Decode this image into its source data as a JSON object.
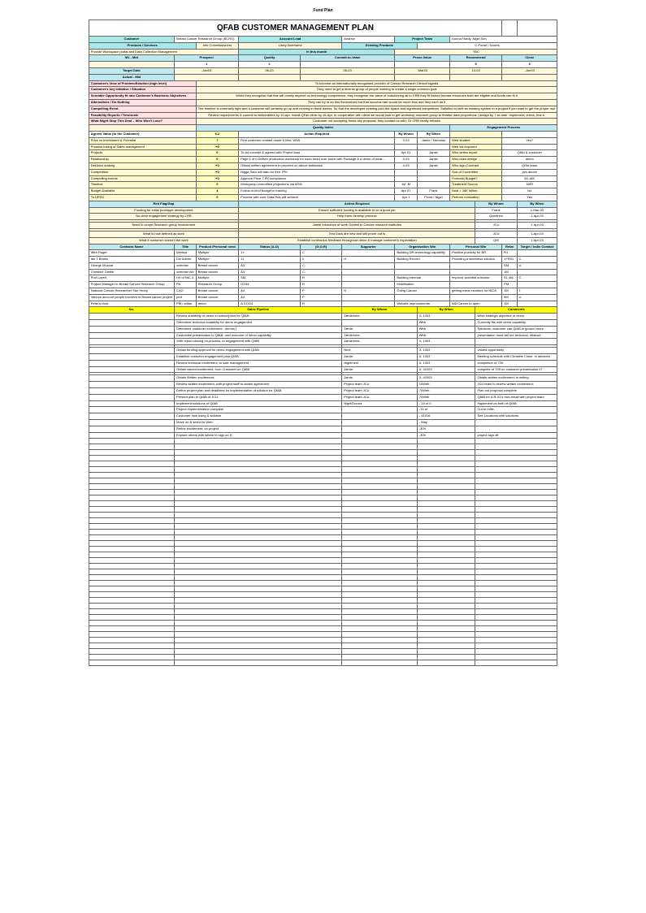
{
  "pageHeader": "Fund Plan",
  "title": "QFAB CUSTOMER MANAGEMENT PLAN",
  "custInfo": {
    "customerLabel": "Customer",
    "customerValue": "Breast Cancer Research Group (BCRG)",
    "accountLeadLabel": "Account Lead",
    "accountLeadValue": "Andrew",
    "projectTeamLabel": "Project Team",
    "projectTeamValue": "Donna Hardy, Nigel Sim",
    "productLabel": "Products / Services",
    "productValue": "Likely timeframe",
    "productValue2": "Info Commissioners",
    "existingLabel": "Existing Products",
    "existingValue": "C Portal / Scores",
    "service": "Provide Workspace portal and Data Collection Management"
  },
  "pipeline": {
    "headers": [
      "Prospect",
      "Qualify",
      "Commit-to-Value",
      "Prove-Value",
      "Recommend",
      "Close"
    ],
    "stageRow": [
      "1",
      "2",
      "",
      "",
      "5",
      "6"
    ],
    "targetLabel": "Target Date",
    "targetVals": [
      "-Jan03",
      "06-03",
      "06-03",
      "-Mar03",
      "10-03",
      "-Jun03"
    ],
    "actualLabel": "Actual - Mid",
    "inThis": "In this month"
  },
  "strategy": [
    {
      "label": "Customer's View of Problem/Solution (high level)",
      "value": "To become an internationally recognised provider of Cancer Research Clinical signals"
    },
    {
      "label": "Customer's key Initiative / Situation",
      "value": "They need to get a diverse group of people working to create a single common goal"
    },
    {
      "label": "Scorable Opportunity fit into Customer's Business Objectives",
      "value": "While they recognise that this will mostly depend on technology competence, they recognise the value of outsourcing all to CRB they fit limited human resources both are eligible and funds can fit it"
    },
    {
      "label": "Alternatives / Do Nothing",
      "value": "They can try to do this themselves but that success rate would be much less and they can't do it"
    },
    {
      "label": "Compelling Event",
      "value": "The timeline is extremely tight and a customer will certainly go up and running in three weeks. So that the developed existing cold-the-space and significant competitors. Satisfied to shift an existing system in a project if you want to get the proper use"
    },
    {
      "label": "Feasibility Reports / Timescale",
      "value": "Review requirements & commit to deliverables by 10-Apr. Install QFab clinic by 16-Apr. In cooperation with client we would look to get workshop research group to finalise data proportions / design by 7-to-date. Implement; check, test it."
    },
    {
      "label": "What Might Stop This Deal – Who Won't Lose?",
      "value": "Customer not accepting funds any proposal; they contact us with; Or CRB totally refuses"
    }
  ],
  "qualityIndex": {
    "header": "Quality Index",
    "engagementHeader": "Engagement Process",
    "rows": [
      {
        "item": "Agreed Value (to the Customer)",
        "score": "6.2",
        "action": "Action Required",
        "by": "By Whom",
        "when": "By When",
        "eng1": "",
        "eng2": ""
      },
      {
        "item": "Price vs Investment & Potential",
        "score": "7",
        "action": "First customer contact made 6-Mar; WVA",
        "by": "3-03",
        "when": "Jamie / Nicholas",
        "eng1": "Web student",
        "eng2": "Yes?"
      },
      {
        "item": "Process Inking of Sales management",
        "score": "+0",
        "action": "",
        "by": "",
        "when": "",
        "eng1": "Web via exposed",
        "eng2": ""
      },
      {
        "item": "Projects",
        "score": "0",
        "action": "To-do concept & agreed with Project lead",
        "by": "Apr 01",
        "when": "Jamie",
        "eng1": "Who writes report",
        "eng2": "QfAb & customer"
      },
      {
        "item": "Relationship",
        "score": "0",
        "action": "Page 1 of 6 Deliver production workshop for each head over lunch with Package & a demo of what...",
        "by": "3-03",
        "when": "Jamie",
        "eng1": "Who does design",
        "eng2": "demo"
      },
      {
        "item": "Decision making",
        "score": "+0",
        "action": "Obtain written agreement to proceed on above estimates",
        "by": "4-03",
        "when": "Jamie",
        "eng1": "Who sign-Contract",
        "eng2": "QfAb team"
      },
      {
        "item": "Competition",
        "score": "+0",
        "action": "Nigga Sam will train for free 7PK",
        "by": "",
        "when": "",
        "eng1": "Sun-of Committee",
        "eng2": "yes above"
      },
      {
        "item": "Compelling events",
        "score": "+0",
        "action": "Approve Price 7 PK compliance",
        "by": "",
        "when": "",
        "eng1": "Forecast Budget?",
        "eng2": "55-18K"
      },
      {
        "item": "Timeline",
        "score": "0",
        "action": "Workgroup committee projections via WVA",
        "by": "1st -M",
        "when": "",
        "eng1": "Treatment Source",
        "eng2": "NtRf"
      },
      {
        "item": "Budget Available",
        "score": "4",
        "action": "Follow-in-kind budget in training",
        "by": "Apr 01",
        "when": "Frank",
        "eng1": "Deal = 18K billion",
        "eng2": "No"
      },
      {
        "item": "To UPDC",
        "score": "0",
        "action": "Process with core Data Hub will achieve",
        "by": "Apr 1",
        "when": "Fiona / Nigel",
        "eng1": "Perform evaluation",
        "eng2": "Yes"
      }
    ]
  },
  "redFlag": {
    "header1": "Red Flag/Gap",
    "header2": "Action Required",
    "header3": "By Whom",
    "header4": "By When",
    "rows": [
      {
        "flag": "Funding for initial prototype development",
        "action": "Ensure sufficient funding is available to do a good job",
        "who": "Frank",
        "when": "1-Mar-03"
      },
      {
        "flag": "No clear engagement strategy by CRB",
        "action": "Help them develop process",
        "who": "QAndrew",
        "when": "1-Apr-03"
      },
      {
        "flag": "",
        "action": "",
        "who": "",
        "when": ""
      },
      {
        "flag": "Need to scope Research group involvement",
        "action": "Jamie Insurance of work Go/test to Cancer research institutes",
        "who": "JCU",
        "when": "1-Apr-03"
      },
      {
        "flag": "",
        "action": "",
        "who": "",
        "when": ""
      },
      {
        "flag": "What is now defined as work",
        "action": "Test Docs are new and still prone out is",
        "who": "JCU",
        "when": "1-Apr-03"
      },
      {
        "flag": "What if customer doesn't like work",
        "action": "Establish continuous feedback throughout demo & manage customer's expectation",
        "who": "QM",
        "when": "1-Apr-03"
      }
    ]
  },
  "contacts": {
    "headers": [
      "Contacts Name",
      "Title",
      "Product /Personal need",
      "Status (A-D)",
      "(G,O,R)",
      "Supporter",
      "Organisation Win",
      "Personal Win",
      "Relat",
      "Target / Indiv Contact"
    ],
    "rows": [
      {
        "name": "Web Roger",
        "title": "Medica",
        "need": "Multiple",
        "status": "1+",
        "gor": "C",
        "supp": "",
        "org": "Building DR technology capability",
        "pers": "Positive publicity for BR",
        "rel": "R1",
        "tgt": ""
      },
      {
        "name": "Ian T Brown",
        "title": "Div Admin",
        "need": "Multiple",
        "status": "J1",
        "gor": "0",
        "supp": "H",
        "org": "Building Record",
        "pers": "Providing a seamless solution",
        "rel": "1+R01",
        "tgt": "C."
      },
      {
        "name": "George Muscat",
        "title": "scientist",
        "need": "Breast cancer",
        "status": "A4",
        "gor": "C-",
        "supp": "",
        "org": "",
        "pers": "",
        "rel": "SM",
        "tgt": "U"
      },
      {
        "name": "Christine Clarke",
        "title": "scientist live",
        "need": "Breast cancer",
        "status": "A4",
        "gor": "C-",
        "supp": "",
        "org": "",
        "pers": "",
        "rel": "1M",
        "tgt": ""
      },
      {
        "name": "Prof Lavell,",
        "title": "Dir of NtC.4",
        "need": "Multiple",
        "status": "SM,",
        "gor": "R",
        "supp": "",
        "org": "Building informal",
        "pers": "Improve scientist outcome",
        "rel": "91-4M",
        "tgt": "C."
      },
      {
        "name": "Project Manager to Breast Cancer Research Group",
        "title": "PA",
        "need": "Research Group",
        "status": "DO44",
        "gor": "R",
        "supp": "",
        "org": "Mobilisation",
        "pers": "",
        "rel": "PM",
        "tgt": ""
      },
      {
        "name": "National Cancer Researcher Sue Henry",
        "title": "CAO",
        "need": "Breast cancer",
        "status": "A4",
        "gor": "P",
        "supp": "H",
        "org": "Going Cancer",
        "pers": "getting extra monitors for NtCA",
        "rel": "1M",
        "tgt": "1"
      },
      {
        "name": "Various account people involved in Breast cancer project",
        "title": "prof",
        "need": "Breast cancer",
        "status": "A4",
        "gor": "P",
        "supp": "",
        "org": "",
        "pers": "",
        "rel": "9M",
        "tgt": "U"
      },
      {
        "name": "Peter's Host",
        "title": "PM / editor",
        "need": "demo",
        "status": "A 3 DO4",
        "gor": "R",
        "supp": "",
        "org": "Website improvements",
        "pers": "WA Cancer to open",
        "rel": "1M",
        "tgt": ""
      }
    ]
  },
  "salesPipeline": {
    "headers": [
      "No.",
      "Sales Pipeline",
      "By Whom",
      "By When",
      "Comments"
    ],
    "rows": [
      {
        "no": "",
        "sp": "Review suitability of demo in subscription for QfAB",
        "who": "Jamie/next.",
        "when": "3- 1003",
        "comm": "Wide strategic objective of demo"
      },
      {
        "no": "",
        "sp": "Determine technical suitability for demo engagement",
        "who": "",
        "when": "Web",
        "comm": "Currently fits with demo capability"
      },
      {
        "no": "",
        "sp": "Determine customer excitement., demos,)",
        "who": "Jamie-",
        "when": "Web",
        "comm": "Solutions; customer can QfAB in ground more."
      },
      {
        "no": "",
        "sp": "Customise presentation to QfAB; own outcome of demo capability",
        "who": "Jamie/next.",
        "when": "Web.",
        "comm": "presentation must will me technical, slideout"
      },
      {
        "no": "",
        "sp": "With report closing on-process, to engagement with QfAB",
        "who": "Jamie/next.",
        "when": "3- 1003",
        "comm": ""
      },
      {
        "no": "",
        "sp": "",
        "who": "",
        "when": "",
        "comm": ""
      },
      {
        "no": "",
        "sp": "Obtain funding approval for demo engagement with QfAB",
        "who": "Next,",
        "when": "3- 1003",
        "comm": "valued opportunity"
      },
      {
        "no": "",
        "sp": "Establish customer engagement plan QfAB",
        "who": "Jamie-",
        "when": "3- 1003",
        "comm": "Meeting schedule with Christine Close. In advance."
      },
      {
        "no": "",
        "sp": "Review technical excitement; to sale management",
        "who": "Nigel/next",
        "when": "3- 1003",
        "comm": "completion of 709"
      },
      {
        "no": "",
        "sp": "Obtain valued excitement; from Customer on QfAB",
        "who": "Jamie-",
        "when": "3- 41003",
        "comm": "complete of 709 on customer presentation 07"
      },
      {
        "no": "",
        "sp": "",
        "who": "",
        "when": "",
        "comm": ""
      },
      {
        "no": "",
        "sp": "Obtain Written excitement;",
        "who": "Jamie-",
        "when": "3- 41003",
        "comm": "Obtain written excitement; in writing"
      },
      {
        "no": "",
        "sp": "Review written excitement; with project staff to obtain agreement",
        "who": "Project team JCU",
        "when": "10Web",
        "comm": "JCU team to review written excitement;"
      },
      {
        "no": "",
        "sp": "Define project plan and deadlines for implementation of solution for QfAB",
        "who": "Project team JCU",
        "when": "70Web",
        "comm": "Plan not proposal complete"
      },
      {
        "no": "",
        "sp": "Present plan to QfAB of JCU",
        "who": "Project team JCU",
        "when": "70Web",
        "comm": "QfAB for A.R.JCU own email with project team"
      },
      {
        "no": "",
        "sp": "Implement solutions of QfAB",
        "who": "Nigel/Donna",
        "when": "- 14 of 0",
        "comm": "Implement on both of QfAB"
      },
      {
        "no": "",
        "sp": "Project implementation complete",
        "who": "",
        "when": "-14 of",
        "comm": "Cut to rollie."
      },
      {
        "no": "",
        "sp": "Customer now using & solution",
        "who": "",
        "when": "- 41016",
        "comm": "See Locations with solutions"
      },
      {
        "no": "",
        "sp": "Move on & select to Web.",
        "who": "",
        "when": "- May",
        "comm": ""
      },
      {
        "no": "",
        "sp": "Refine excitement; on project",
        "who": "",
        "when": "-30h",
        "comm": ""
      },
      {
        "no": "",
        "sp": "Explore others with where to sign on if",
        "who": "",
        "when": "-30h",
        "comm": "project sign off"
      }
    ]
  },
  "emptyRows": 40,
  "colors": {
    "teal": "#a8e8e8",
    "blue": "#c0e8f0",
    "yellow": "#ffffc0",
    "pink": "#ffe0e0",
    "brightYellow": "#ffff00",
    "border": "#666666"
  }
}
